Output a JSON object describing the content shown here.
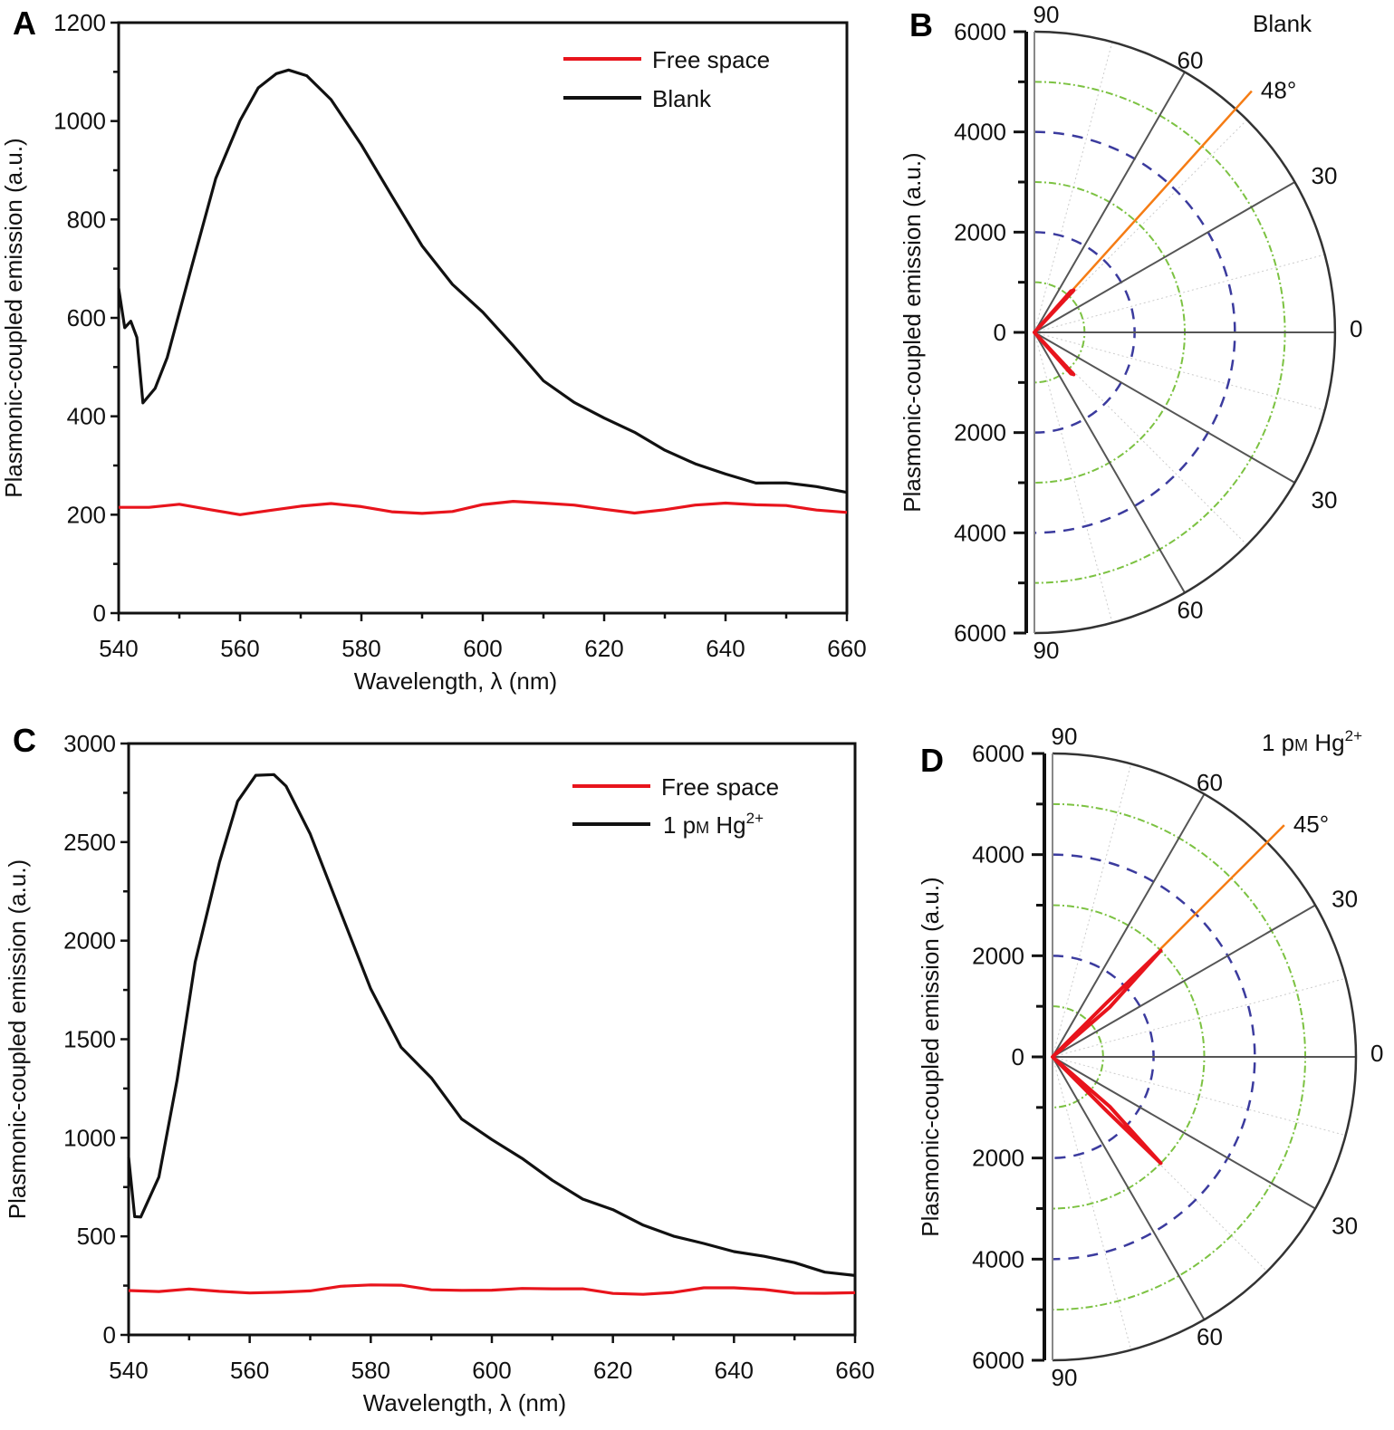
{
  "chart_data": [
    {
      "panel": "A",
      "type": "line",
      "xlabel": "Wavelength, λ (nm)",
      "ylabel": "Plasmonic-coupled emission (a.u.)",
      "xlim": [
        540,
        660
      ],
      "ylim": [
        0,
        1200
      ],
      "xticks": [
        540,
        560,
        580,
        600,
        620,
        640,
        660
      ],
      "yticks": [
        0,
        200,
        400,
        600,
        800,
        1000,
        1200
      ],
      "legend": "top-right",
      "series": [
        {
          "name": "Free space",
          "color": "#e8141c",
          "x": [
            540,
            545,
            550,
            555,
            560,
            565,
            570,
            575,
            580,
            585,
            590,
            595,
            600,
            605,
            610,
            615,
            620,
            625,
            630,
            635,
            640,
            645,
            650,
            655,
            660
          ],
          "y": [
            215,
            215,
            218,
            210,
            203,
            212,
            218,
            220,
            213,
            205,
            205,
            210,
            222,
            225,
            220,
            218,
            213,
            207,
            212,
            218,
            220,
            218,
            220,
            213,
            207
          ]
        },
        {
          "name": "Blank",
          "color": "#111111",
          "x": [
            540,
            541,
            542,
            543,
            544,
            546,
            548,
            552,
            556,
            560,
            563,
            566,
            568,
            571,
            575,
            580,
            585,
            590,
            595,
            600,
            605,
            610,
            615,
            620,
            625,
            630,
            635,
            640,
            645,
            650,
            655,
            660
          ],
          "y": [
            660,
            580,
            590,
            560,
            430,
            460,
            520,
            700,
            880,
            1000,
            1070,
            1100,
            1105,
            1090,
            1040,
            950,
            850,
            750,
            670,
            610,
            540,
            470,
            430,
            400,
            370,
            330,
            300,
            280,
            265,
            268,
            260,
            245
          ]
        }
      ]
    },
    {
      "panel": "B",
      "type": "polar",
      "ylabel": "Plasmonic-coupled emission (a.u.)",
      "title": "Blank",
      "rlim": [
        0,
        6000
      ],
      "rticks": [
        "6000",
        "4000",
        "2000",
        "0",
        "2000",
        "4000",
        "6000"
      ],
      "angle_labels": [
        "90",
        "60",
        "30",
        "0",
        "30",
        "60",
        "90"
      ],
      "peak_angle_label": "48°",
      "peak_angle": 48,
      "series": [
        {
          "color": "#e8141c",
          "points": [
            [
              0,
              0
            ],
            [
              47,
              1150
            ],
            [
              48.5,
              1100
            ],
            [
              0,
              0
            ],
            [
              -48.5,
              1100
            ],
            [
              -47,
              1150
            ],
            [
              0,
              0
            ]
          ]
        }
      ]
    },
    {
      "panel": "C",
      "type": "line",
      "xlabel": "Wavelength, λ (nm)",
      "ylabel": "Plasmonic-coupled emission (a.u.)",
      "xlim": [
        540,
        660
      ],
      "ylim": [
        0,
        3000
      ],
      "xticks": [
        540,
        560,
        580,
        600,
        620,
        640,
        660
      ],
      "yticks": [
        0,
        500,
        1000,
        1500,
        2000,
        2500,
        3000
      ],
      "legend": "top-right",
      "series": [
        {
          "name": "Free space",
          "color": "#e8141c",
          "x": [
            540,
            545,
            550,
            555,
            560,
            565,
            570,
            575,
            580,
            585,
            590,
            595,
            600,
            605,
            610,
            615,
            620,
            625,
            630,
            635,
            640,
            645,
            650,
            655,
            660
          ],
          "y": [
            225,
            220,
            225,
            220,
            220,
            225,
            225,
            240,
            245,
            250,
            235,
            235,
            230,
            230,
            225,
            230,
            215,
            215,
            220,
            235,
            230,
            225,
            215,
            220,
            220
          ]
        },
        {
          "name": "1 pM Hg2+",
          "color": "#111111",
          "x": [
            540,
            541,
            542,
            545,
            548,
            551,
            555,
            558,
            561,
            564,
            566,
            570,
            575,
            580,
            585,
            590,
            595,
            600,
            605,
            610,
            615,
            620,
            625,
            630,
            635,
            640,
            645,
            650,
            655,
            660
          ],
          "y": [
            900,
            600,
            590,
            800,
            1300,
            1900,
            2400,
            2700,
            2830,
            2840,
            2790,
            2550,
            2150,
            1750,
            1450,
            1300,
            1100,
            1000,
            900,
            780,
            680,
            630,
            560,
            510,
            470,
            420,
            390,
            360,
            320,
            310
          ]
        }
      ]
    },
    {
      "panel": "D",
      "type": "polar",
      "ylabel": "Plasmonic-coupled emission (a.u.)",
      "title": "1 pM Hg2+",
      "rlim": [
        0,
        6000
      ],
      "rticks": [
        "6000",
        "4000",
        "2000",
        "0",
        "2000",
        "4000",
        "6000"
      ],
      "angle_labels": [
        "90",
        "60",
        "30",
        "0",
        "30",
        "60",
        "90"
      ],
      "peak_angle_label": "45°",
      "peak_angle": 45,
      "series": [
        {
          "color": "#e8141c",
          "points": [
            [
              0,
              0
            ],
            [
              41,
              1500
            ],
            [
              44.5,
              3000
            ],
            [
              45,
              1500
            ],
            [
              0,
              0
            ],
            [
              -45,
              1500
            ],
            [
              -44.5,
              3000
            ],
            [
              -41,
              1500
            ],
            [
              0,
              0
            ]
          ]
        }
      ]
    }
  ],
  "legend_label_parts": {
    "prefix": "1 p",
    "unit": "M",
    "ion": " Hg",
    "charge": "2+"
  },
  "colors": {
    "grid_green": "#7cc242",
    "grid_blue": "#3b3b9e",
    "peak_line": "#f57c14",
    "spoke": "#555555"
  }
}
